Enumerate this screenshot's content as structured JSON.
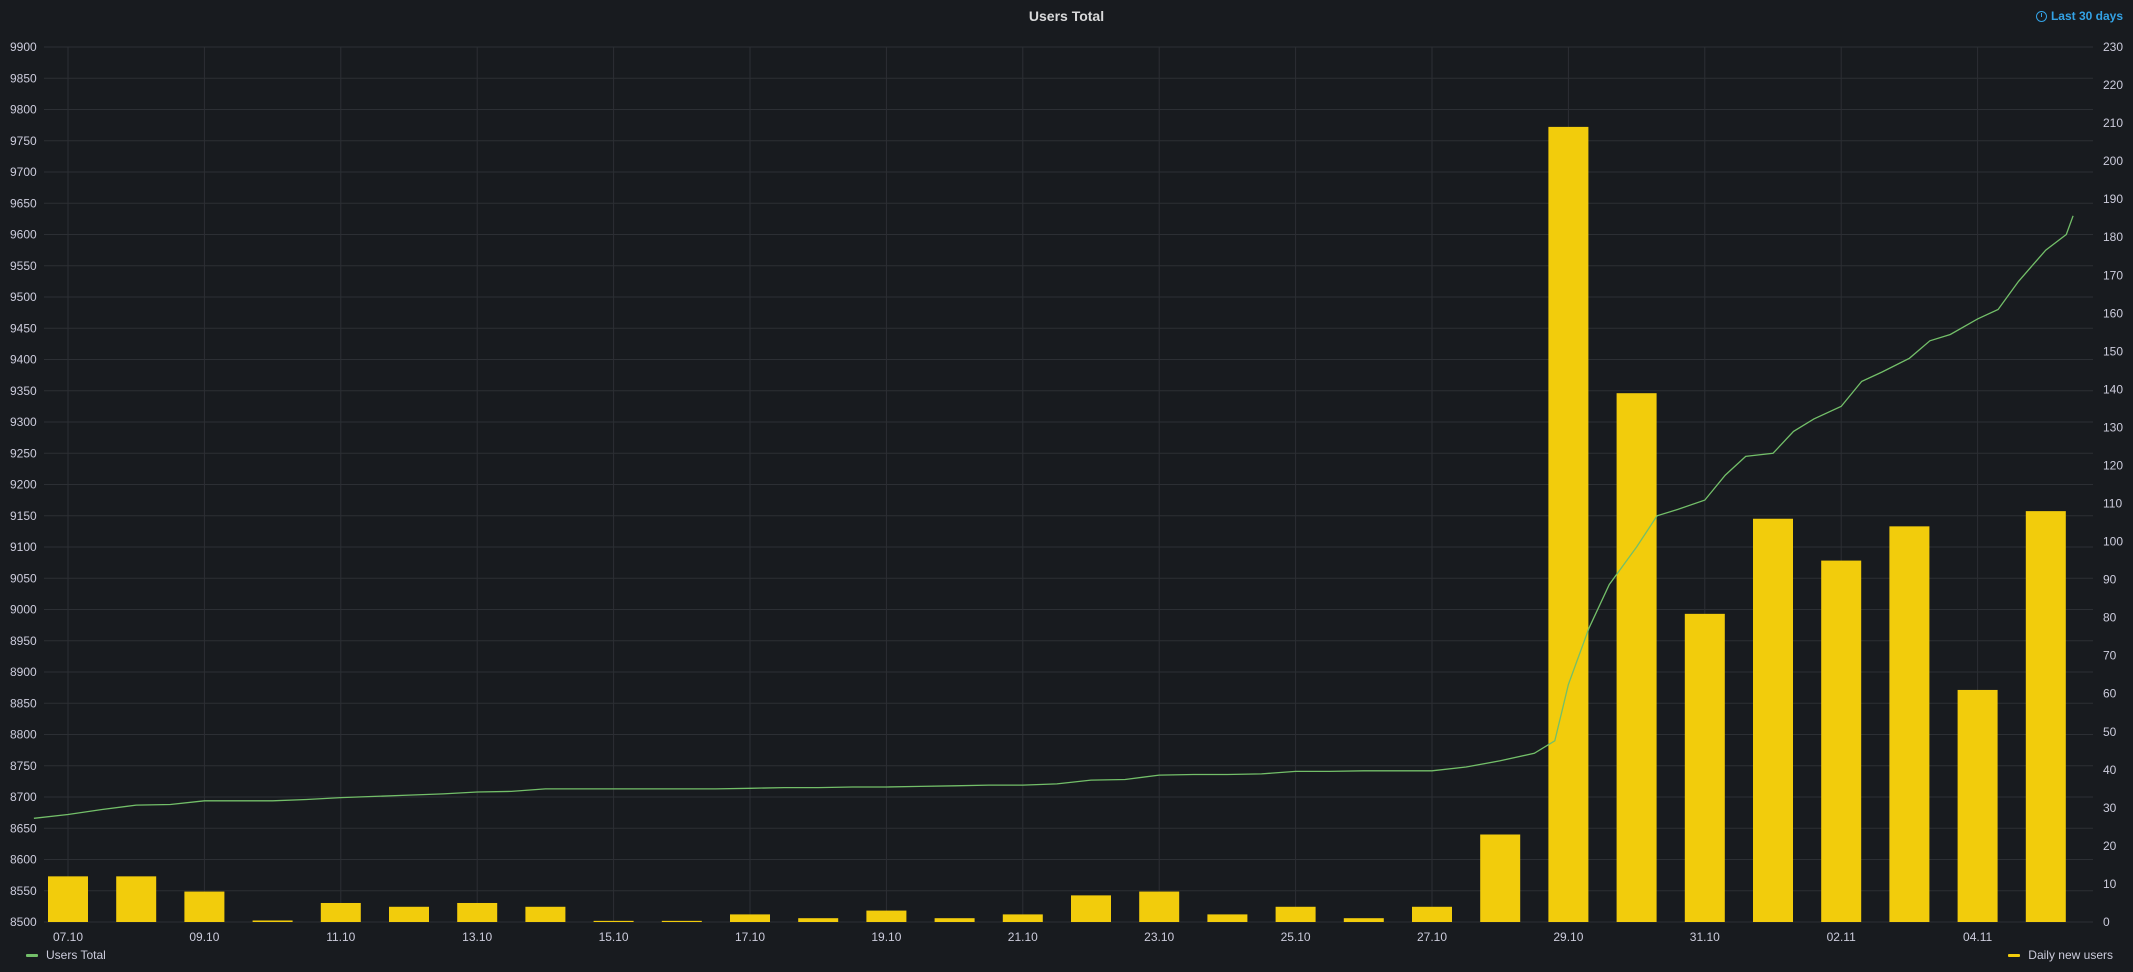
{
  "panel": {
    "title": "Users Total",
    "time_range": "Last 30 days"
  },
  "colors": {
    "background": "#181b1f",
    "grid": "#2c2f34",
    "tick_text": "#ccccdc",
    "line": "#73bf69",
    "bar": "#f2cc0c"
  },
  "chart_data": {
    "type": "bar+line",
    "title": "Users Total",
    "x_tick_labels": [
      "07.10",
      "09.10",
      "11.10",
      "13.10",
      "15.10",
      "17.10",
      "19.10",
      "21.10",
      "23.10",
      "25.10",
      "27.10",
      "29.10",
      "31.10",
      "02.11",
      "04.11"
    ],
    "left_axis": {
      "ylim": [
        8500,
        9900
      ],
      "ticks": [
        8500,
        8550,
        8600,
        8650,
        8700,
        8750,
        8800,
        8850,
        8900,
        8950,
        9000,
        9050,
        9100,
        9150,
        9200,
        9250,
        9300,
        9350,
        9400,
        9450,
        9500,
        9550,
        9600,
        9650,
        9700,
        9750,
        9800,
        9850,
        9900
      ]
    },
    "right_axis": {
      "ylim": [
        0,
        230
      ],
      "ticks": [
        0,
        10,
        20,
        30,
        40,
        50,
        60,
        70,
        80,
        90,
        100,
        110,
        120,
        130,
        140,
        150,
        160,
        170,
        180,
        190,
        200,
        210,
        220,
        230
      ]
    },
    "grid": true,
    "legend_placement": "bottom",
    "series": [
      {
        "name": "Users Total",
        "type": "line",
        "axis": "left",
        "days": [
          6.5,
          7,
          7.5,
          8,
          8.5,
          9,
          9.5,
          10,
          10.5,
          11,
          11.5,
          12,
          12.5,
          13,
          13.5,
          14,
          14.5,
          15,
          15.5,
          16,
          16.5,
          17,
          17.5,
          18,
          18.5,
          19,
          19.5,
          20,
          20.5,
          21,
          21.5,
          22,
          22.5,
          23,
          23.5,
          24,
          24.5,
          25,
          25.5,
          26,
          26.5,
          27,
          27.5,
          28,
          28.5,
          28.8,
          29,
          29.3,
          29.6,
          30,
          30.3,
          30.6,
          31,
          31.3,
          31.6,
          32,
          32.3,
          32.6,
          33,
          33.3,
          33.6,
          34,
          34.3,
          34.6,
          35,
          35.3,
          35.6,
          36,
          36.3,
          36.4
        ],
        "values": [
          8666,
          8672,
          8680,
          8687,
          8688,
          8694,
          8694,
          8694,
          8696,
          8699,
          8701,
          8703,
          8705,
          8708,
          8709,
          8713,
          8713,
          8713,
          8713,
          8713,
          8713,
          8714,
          8715,
          8715,
          8716,
          8716,
          8717,
          8718,
          8719,
          8719,
          8721,
          8727,
          8728,
          8735,
          8736,
          8736,
          8737,
          8741,
          8741,
          8742,
          8742,
          8742,
          8748,
          8758,
          8770,
          8790,
          8880,
          8970,
          9040,
          9100,
          9150,
          9160,
          9175,
          9215,
          9245,
          9250,
          9285,
          9305,
          9325,
          9365,
          9380,
          9402,
          9430,
          9440,
          9465,
          9480,
          9525,
          9575,
          9600,
          9630
        ]
      },
      {
        "name": "Daily new users",
        "type": "bar",
        "axis": "right",
        "days": [
          7,
          8,
          9,
          10,
          11,
          12,
          13,
          14,
          15,
          16,
          17,
          18,
          19,
          20,
          21,
          22,
          23,
          24,
          25,
          26,
          27,
          28,
          29,
          30,
          31,
          32,
          33,
          34,
          35,
          36
        ],
        "values": [
          12,
          12,
          8,
          0.4,
          5,
          4,
          5,
          4,
          0.3,
          0.3,
          2,
          1,
          3,
          1,
          2,
          7,
          8,
          2,
          4,
          1,
          4,
          23,
          209,
          139,
          81,
          106,
          95,
          104,
          61,
          108
        ]
      }
    ]
  },
  "legend": {
    "line_label": "Users Total",
    "bar_label": "Daily new users"
  }
}
